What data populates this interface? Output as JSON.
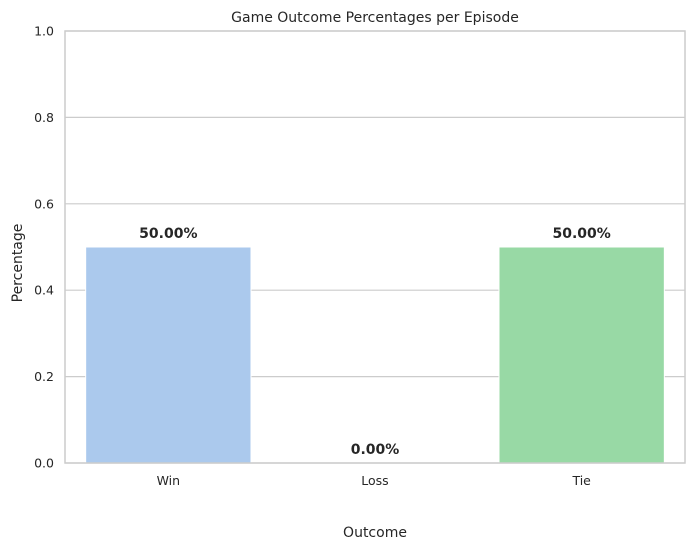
{
  "chart_data": {
    "type": "bar",
    "title": "Game Outcome Percentages per Episode",
    "xlabel": "Outcome",
    "ylabel": "Percentage",
    "categories": [
      "Win",
      "Loss",
      "Tie"
    ],
    "values": [
      0.5,
      0.0,
      0.5
    ],
    "data_labels": [
      "50.00%",
      "0.00%",
      "50.00%"
    ],
    "colors": [
      "#abc9ed",
      "#f5b990",
      "#98d9a5"
    ],
    "ylim": [
      0,
      1
    ],
    "yticks": [
      0.0,
      0.2,
      0.4,
      0.6,
      0.8,
      1.0
    ],
    "ytick_labels": [
      "0.0",
      "0.2",
      "0.4",
      "0.6",
      "0.8",
      "1.0"
    ],
    "grid": "horizontal",
    "grid_color": "#cccccc"
  }
}
